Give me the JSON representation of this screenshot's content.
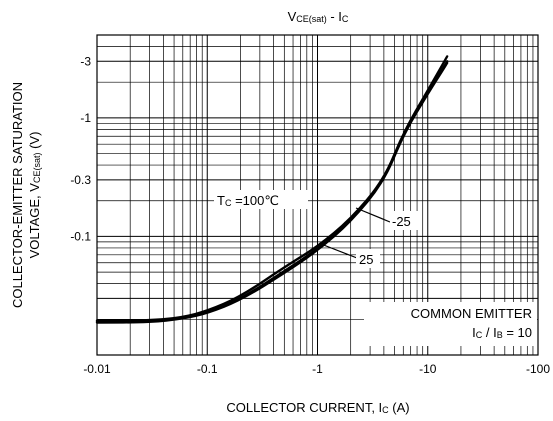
{
  "chart_data": {
    "type": "line",
    "title": {
      "main": "V",
      "sub": "CE(sat)",
      "sep": " - I",
      "sub2": "C"
    },
    "xlabel": {
      "main": "COLLECTOR CURRENT,  I",
      "sub": "C",
      "tail": " (A)"
    },
    "ylabel": {
      "line1": "COLLECTOR-EMITTER SATURATION",
      "line2_main": "VOLTAGE,  V",
      "line2_sub": "CE(sat)",
      "line2_tail": " (V)"
    },
    "x_scale": "log",
    "y_scale": "log",
    "xlim": [
      -0.01,
      -100
    ],
    "ylim": [
      -0.01,
      -5
    ],
    "x_ticks": [
      {
        "value": -0.01,
        "label": "-0.01"
      },
      {
        "value": -0.1,
        "label": "-0.1"
      },
      {
        "value": -1,
        "label": "-1"
      },
      {
        "value": -10,
        "label": "-10"
      },
      {
        "value": -100,
        "label": "-100"
      }
    ],
    "y_ticks": [
      {
        "value": -3,
        "label": "-3"
      },
      {
        "value": -1,
        "label": "-1"
      },
      {
        "value": -0.3,
        "label": "-0.3"
      },
      {
        "value": -0.1,
        "label": "-0.1"
      }
    ],
    "grid": true,
    "series": [
      {
        "name": "100",
        "x": [
          -0.01,
          -0.03,
          -0.06,
          -0.1,
          -0.2,
          -0.5,
          -1,
          -2,
          -4,
          -6,
          -10,
          -15
        ],
        "y": [
          -0.0195,
          -0.0195,
          -0.0208,
          -0.0235,
          -0.031,
          -0.055,
          -0.082,
          -0.14,
          -0.3,
          -0.75,
          -1.7,
          -3.3
        ]
      },
      {
        "name": "-25",
        "x": [
          -0.01,
          -0.03,
          -0.06,
          -0.1,
          -0.2,
          -0.5,
          -1,
          -2,
          -4,
          -6,
          -10,
          -15
        ],
        "y": [
          -0.0188,
          -0.0189,
          -0.0202,
          -0.0225,
          -0.029,
          -0.049,
          -0.076,
          -0.133,
          -0.29,
          -0.72,
          -1.6,
          -2.9
        ]
      },
      {
        "name": "25",
        "x": [
          -0.01,
          -0.03,
          -0.06,
          -0.1,
          -0.2,
          -0.5,
          -1,
          -2,
          -4,
          -6,
          -10,
          -15
        ],
        "y": [
          -0.0191,
          -0.0192,
          -0.0205,
          -0.0228,
          -0.0295,
          -0.051,
          -0.078,
          -0.136,
          -0.295,
          -0.73,
          -1.62,
          -3.0
        ]
      }
    ],
    "annotations": {
      "tc_main": "T",
      "tc_sub": "C",
      "tc_value": " =100℃",
      "label_m25": "-25",
      "label_25": "25",
      "common_emitter": "COMMON EMITTER",
      "ratio_main1": "I",
      "ratio_sub1": "C",
      "ratio_mid": " / I",
      "ratio_sub2": "B",
      "ratio_tail": " = 10"
    }
  }
}
